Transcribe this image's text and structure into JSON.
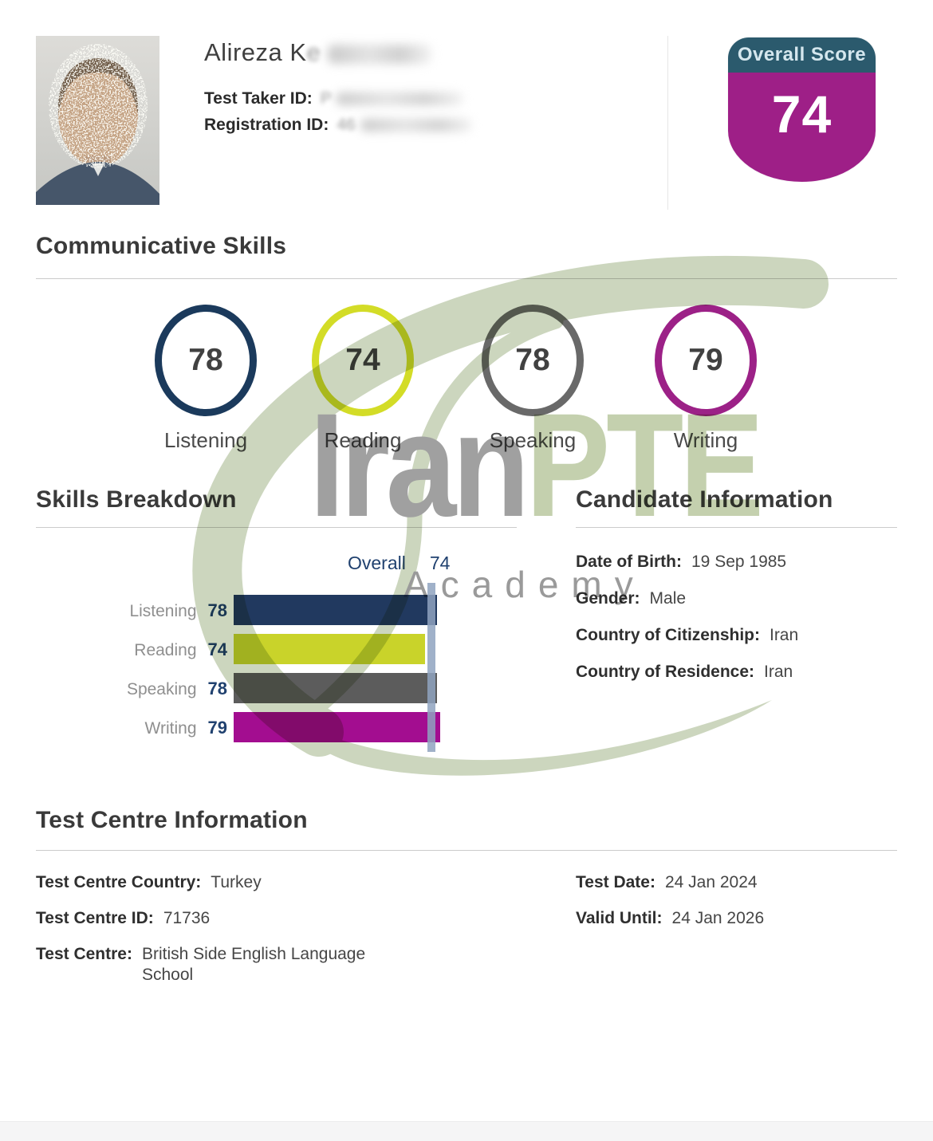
{
  "header": {
    "name_visible": "Alireza K",
    "test_taker_id_label": "Test Taker ID:",
    "test_taker_id_visible": "P",
    "registration_id_label": "Registration ID:",
    "registration_id_visible": "46"
  },
  "overall_badge": {
    "title": "Overall Score",
    "score": "74",
    "header_color": "#2b5a6d",
    "body_color": "#9e1f87"
  },
  "section_titles": {
    "communicative_skills": "Communicative Skills",
    "skills_breakdown": "Skills Breakdown",
    "candidate_information": "Candidate Information",
    "test_centre_information": "Test Centre Information"
  },
  "skills": [
    {
      "label": "Listening",
      "score": "78",
      "color": "#1b3a5c"
    },
    {
      "label": "Reading",
      "score": "74",
      "color": "#d3dc27"
    },
    {
      "label": "Speaking",
      "score": "78",
      "color": "#696969"
    },
    {
      "label": "Writing",
      "score": "79",
      "color": "#9c2187"
    }
  ],
  "chart_data": {
    "type": "bar",
    "orientation": "horizontal",
    "title": "Skills Breakdown",
    "categories": [
      "Listening",
      "Reading",
      "Speaking",
      "Writing"
    ],
    "values": [
      78,
      74,
      78,
      79
    ],
    "bar_colors": [
      "#21395f",
      "#c9d32a",
      "#5c5c5c",
      "#a30d90"
    ],
    "overall_label": "Overall",
    "overall_value": 74,
    "marker_color": "#8fa3c0",
    "xlim": [
      10,
      90
    ],
    "grid": false,
    "legend": false
  },
  "candidate_info": {
    "rows": [
      {
        "label": "Date of Birth:",
        "value": "19 Sep 1985"
      },
      {
        "label": "Gender:",
        "value": "Male"
      },
      {
        "label": "Country of Citizenship:",
        "value": "Iran"
      },
      {
        "label": "Country of Residence:",
        "value": "Iran"
      }
    ]
  },
  "test_centre_info": {
    "left_rows": [
      {
        "label": "Test Centre Country:",
        "value": "Turkey"
      },
      {
        "label": "Test Centre ID:",
        "value": "71736"
      },
      {
        "label": "Test Centre:",
        "value": "British Side English Language School"
      }
    ],
    "right_rows": [
      {
        "label": "Test Date:",
        "value": "24 Jan 2024"
      },
      {
        "label": "Valid Until:",
        "value": "24 Jan 2026"
      }
    ]
  },
  "watermark": {
    "part1": "Iran",
    "part2": "PTE",
    "part3": "Academy",
    "part1_color": "#a0a0a0",
    "part2_color": "#c4d0ae",
    "swoosh_color": "#ccd6be"
  }
}
